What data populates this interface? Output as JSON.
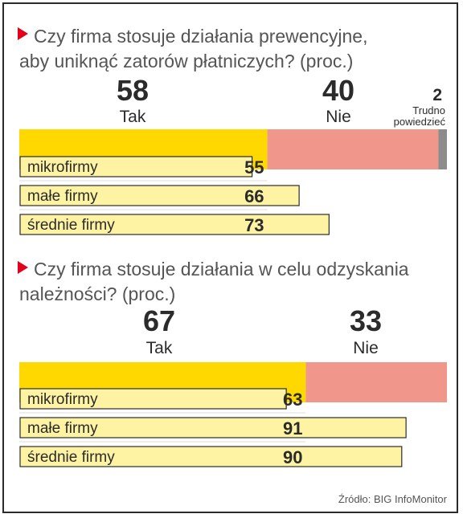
{
  "colors": {
    "yes": "#ffd800",
    "no": "#f0968a",
    "unsure": "#8c8c8c",
    "sub_bar": "#fdf3a3",
    "sub_border": "#2b2b2b",
    "marker": "#e2001a",
    "divider": "#dddddd"
  },
  "source": "Źródło: BIG InfoMonitor",
  "chart_data": [
    {
      "type": "bar",
      "orientation": "horizontal",
      "title": "Czy firma stosuje działania prewencyjne, aby uniknąć zatorów płatniczych? (proc.)",
      "title_lines": [
        "Czy firma stosuje działania prewencyjne,",
        "aby uniknąć zatorów płatniczych? (proc.)"
      ],
      "total": [
        {
          "label": "Tak",
          "value": 58
        },
        {
          "label": "Nie",
          "value": 40
        },
        {
          "label": "Trudno powiedzieć",
          "label_lines": [
            "Trudno",
            "powiedzieć"
          ],
          "value": 2
        }
      ],
      "breakdown": {
        "categories": [
          "mikrofirmy",
          "małe firmy",
          "średnie firmy"
        ],
        "values": [
          55,
          66,
          73
        ]
      },
      "xlim": [
        0,
        100
      ]
    },
    {
      "type": "bar",
      "orientation": "horizontal",
      "title": "Czy firma stosuje działania w celu odzyskania należności? (proc.)",
      "title_lines": [
        "Czy firma stosuje działania w celu odzyskania",
        "należności? (proc.)"
      ],
      "total": [
        {
          "label": "Tak",
          "value": 67
        },
        {
          "label": "Nie",
          "value": 33
        }
      ],
      "breakdown": {
        "categories": [
          "mikrofirmy",
          "małe firmy",
          "średnie firmy"
        ],
        "values": [
          63,
          91,
          90
        ]
      },
      "xlim": [
        0,
        100
      ]
    }
  ]
}
